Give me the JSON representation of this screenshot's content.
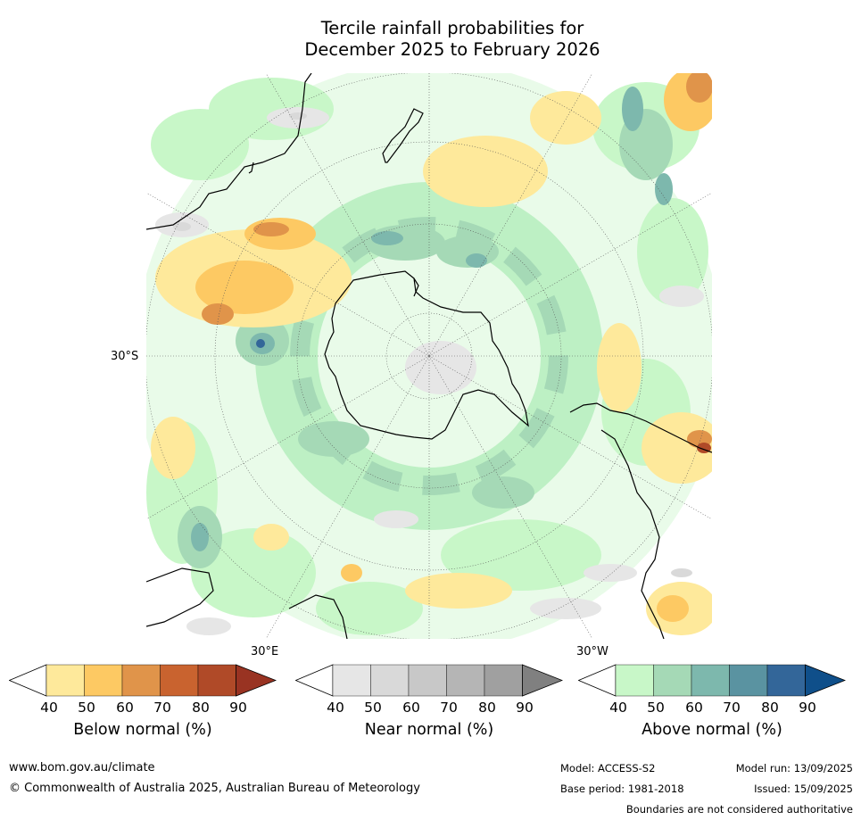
{
  "title": {
    "line1": "Tercile rainfall probabilities for",
    "line2": "December 2025 to February 2026"
  },
  "map": {
    "projection": "south polar stereographic",
    "lat_labels": {
      "left": "30°S",
      "lower_left": "30°E",
      "lower_right": "30°W"
    }
  },
  "colorbars": [
    {
      "key": "below",
      "label": "Below normal (%)",
      "ticks": [
        "40",
        "50",
        "60",
        "70",
        "80",
        "90"
      ],
      "colors": [
        "#ffffff",
        "#fee99b",
        "#fdc963",
        "#e0944a",
        "#c9632f",
        "#b04a28",
        "#993322"
      ]
    },
    {
      "key": "near",
      "label": "Near normal (%)",
      "ticks": [
        "40",
        "50",
        "60",
        "70",
        "80",
        "90"
      ],
      "colors": [
        "#ffffff",
        "#e6e6e6",
        "#d9d9d9",
        "#c8c8c8",
        "#b5b5b5",
        "#a0a0a0",
        "#808080"
      ]
    },
    {
      "key": "above",
      "label": "Above normal (%)",
      "ticks": [
        "40",
        "50",
        "60",
        "70",
        "80",
        "90"
      ],
      "colors": [
        "#ffffff",
        "#c8f7c8",
        "#a5d9b6",
        "#7db8ad",
        "#5a93a1",
        "#336699",
        "#0f4f8a"
      ]
    }
  ],
  "footer": {
    "website": "www.bom.gov.au/climate",
    "copyright": "© Commonwealth of Australia 2025, Australian Bureau of Meteorology",
    "model": "Model: ACCESS-S2",
    "base_period": "Base period: 1981-2018",
    "model_run": "Model run: 13/09/2025",
    "issued": "Issued: 15/09/2025",
    "disclaimer": "Boundaries are not considered authoritative"
  }
}
